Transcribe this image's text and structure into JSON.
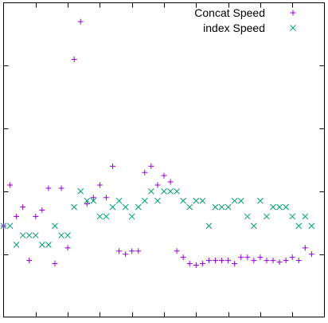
{
  "chart_data": {
    "type": "scatter",
    "title": "",
    "xlabel": "",
    "ylabel": "",
    "xlim": [
      0,
      100
    ],
    "ylim": [
      0,
      100
    ],
    "grid": false,
    "legend_position": "top-right",
    "x_ticks": [
      10,
      20,
      30,
      40,
      50,
      60,
      70,
      80,
      90
    ],
    "y_ticks": [
      20,
      40,
      60,
      80
    ],
    "series": [
      {
        "name": "Concat Speed",
        "marker": "plus",
        "color": "#9400d3",
        "x": [
          0,
          2,
          4,
          6,
          8,
          10,
          12,
          14,
          16,
          18,
          20,
          22,
          24,
          26,
          28,
          30,
          32,
          34,
          36,
          38,
          40,
          42,
          44,
          46,
          48,
          50,
          52,
          54,
          56,
          58,
          60,
          62,
          64,
          66,
          68,
          70,
          72,
          74,
          76,
          78,
          80,
          82,
          84,
          86,
          88,
          90,
          92,
          94,
          96
        ],
        "y": [
          29,
          42,
          32,
          35,
          18,
          32,
          34,
          41,
          17,
          41,
          22,
          82,
          94,
          36,
          38,
          42,
          38,
          48,
          21,
          20,
          21,
          21,
          46,
          48,
          42,
          45,
          43,
          21,
          19,
          17,
          16.5,
          17,
          18,
          18,
          18,
          18,
          17,
          19,
          19,
          18,
          19,
          18,
          18,
          17.5,
          18,
          19,
          18,
          22,
          20
        ]
      },
      {
        "name": "index Speed",
        "marker": "cross",
        "color": "#009e73",
        "x": [
          0,
          2,
          4,
          6,
          8,
          10,
          12,
          14,
          16,
          18,
          20,
          22,
          24,
          26,
          28,
          30,
          32,
          34,
          36,
          38,
          40,
          42,
          44,
          46,
          48,
          50,
          52,
          54,
          56,
          58,
          60,
          62,
          64,
          66,
          68,
          70,
          72,
          74,
          76,
          78,
          80,
          82,
          84,
          86,
          88,
          90,
          92,
          94,
          96
        ],
        "y": [
          29,
          29,
          23,
          26,
          26,
          26,
          23,
          23,
          29,
          26,
          26,
          35,
          40,
          37,
          37,
          32,
          32,
          35,
          37,
          35,
          32,
          35,
          37,
          40,
          37,
          40,
          40,
          40,
          37,
          35,
          37,
          37,
          29,
          35,
          35,
          35,
          37,
          37,
          32,
          29,
          37,
          32,
          35,
          35,
          35,
          32,
          29,
          32,
          29
        ]
      }
    ]
  }
}
